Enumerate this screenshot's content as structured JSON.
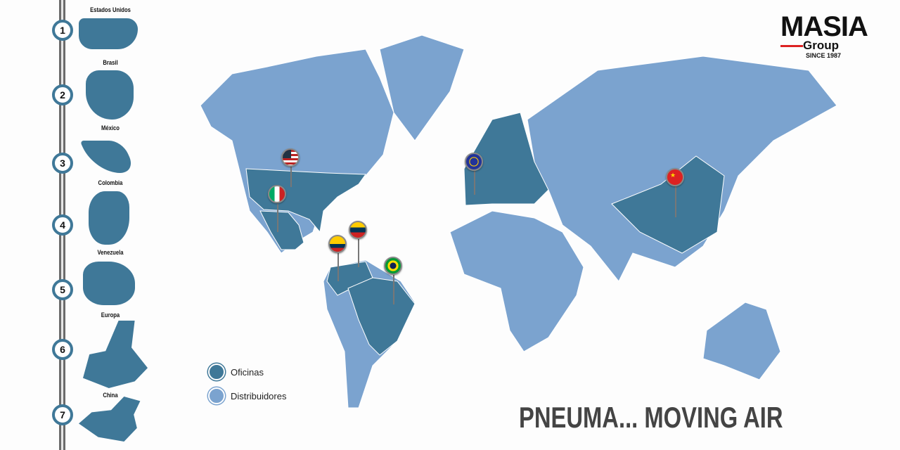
{
  "logo": {
    "name": "MASIA",
    "sub": "Group",
    "since": "SINCE 1987"
  },
  "locations": [
    {
      "num": "1",
      "label": "Estados Unidos"
    },
    {
      "num": "2",
      "label": "Brasil"
    },
    {
      "num": "3",
      "label": "México"
    },
    {
      "num": "4",
      "label": "Colombia"
    },
    {
      "num": "5",
      "label": "Venezuela"
    },
    {
      "num": "6",
      "label": "Europa"
    },
    {
      "num": "7",
      "label": "China"
    }
  ],
  "legend": {
    "offices": "Oficinas",
    "distributors": "Distribuidores"
  },
  "colors": {
    "offices": "#3f7898",
    "distributors": "#7ba3cf"
  },
  "tagline": "PNEUMA... MOVING AIR"
}
